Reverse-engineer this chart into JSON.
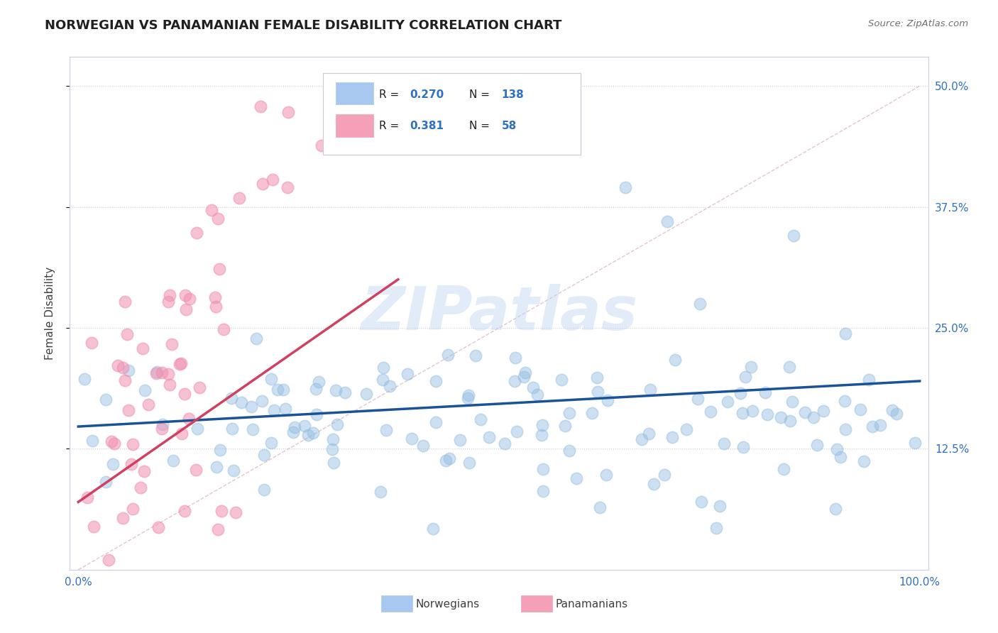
{
  "title": "NORWEGIAN VS PANAMANIAN FEMALE DISABILITY CORRELATION CHART",
  "source": "Source: ZipAtlas.com",
  "ylabel_label": "Female Disability",
  "r_norwegian": 0.27,
  "n_norwegian": 138,
  "r_panamanian": 0.381,
  "n_panamanian": 58,
  "norwegian_color": "#92bce0",
  "panamanian_color": "#f090b0",
  "norwegian_line_color": "#1a5298",
  "panamanian_line_color": "#d04060",
  "background_color": "#ffffff",
  "grid_color": "#c8c8d8",
  "title_fontsize": 13,
  "watermark": "ZIPatlas",
  "yticks": [
    0.125,
    0.25,
    0.375,
    0.5
  ],
  "ytick_labels": [
    "12.5%",
    "25.0%",
    "37.5%",
    "50.0%"
  ],
  "xtick_labels": [
    "0.0%",
    "100.0%"
  ],
  "ymin": 0.0,
  "ymax": 0.53,
  "xmin": 0.0,
  "xmax": 100.0,
  "seed": 7
}
